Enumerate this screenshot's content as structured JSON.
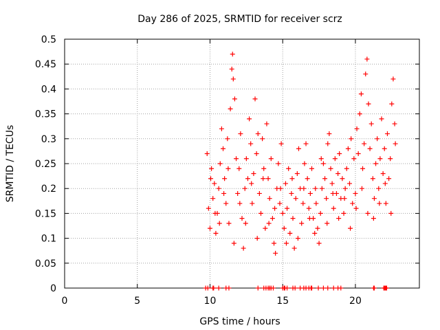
{
  "chart_data": {
    "type": "scatter",
    "title": "Day 286 of 2025, SRMTID for receiver scrz",
    "xlabel": "GPS time / hours",
    "ylabel": "SRMTID / TECUs",
    "xlim": [
      0,
      24.4
    ],
    "ylim": [
      0,
      0.5
    ],
    "xticks": [
      0,
      5,
      10,
      15,
      20
    ],
    "xtick_labels": [
      "0",
      "5",
      "10",
      "15",
      "20"
    ],
    "yticks": [
      0,
      0.05,
      0.1,
      0.15,
      0.2,
      0.25,
      0.3,
      0.35,
      0.4,
      0.45,
      0.5
    ],
    "ytick_labels": [
      "0",
      "0.05",
      "0.1",
      "0.15",
      "0.2",
      "0.25",
      "0.3",
      "0.35",
      "0.4",
      "0.45",
      "0.5"
    ],
    "grid": true,
    "marker": "+",
    "series_color": "#ff0000",
    "series": [
      {
        "name": "SRMTID",
        "points": [
          [
            9.8,
            0.27
          ],
          [
            9.9,
            0.16
          ],
          [
            10.0,
            0.12
          ],
          [
            10.1,
            0.24
          ],
          [
            10.2,
            0.18
          ],
          [
            10.3,
            0.21
          ],
          [
            10.4,
            0.11
          ],
          [
            10.5,
            0.15
          ],
          [
            10.6,
            0.2
          ],
          [
            10.7,
            0.25
          ],
          [
            10.8,
            0.32
          ],
          [
            10.9,
            0.28
          ],
          [
            11.0,
            0.22
          ],
          [
            11.1,
            0.17
          ],
          [
            11.2,
            0.3
          ],
          [
            11.3,
            0.13
          ],
          [
            11.4,
            0.36
          ],
          [
            11.5,
            0.44
          ],
          [
            11.55,
            0.47
          ],
          [
            11.6,
            0.42
          ],
          [
            11.7,
            0.38
          ],
          [
            11.8,
            0.26
          ],
          [
            11.9,
            0.19
          ],
          [
            12.0,
            0.24
          ],
          [
            12.1,
            0.31
          ],
          [
            12.2,
            0.14
          ],
          [
            12.3,
            0.08
          ],
          [
            12.4,
            0.2
          ],
          [
            12.5,
            0.26
          ],
          [
            12.6,
            0.22
          ],
          [
            12.7,
            0.34
          ],
          [
            12.8,
            0.29
          ],
          [
            12.9,
            0.17
          ],
          [
            13.0,
            0.23
          ],
          [
            13.1,
            0.38
          ],
          [
            13.2,
            0.27
          ],
          [
            13.3,
            0.31
          ],
          [
            13.4,
            0.19
          ],
          [
            13.5,
            0.15
          ],
          [
            13.6,
            0.3
          ],
          [
            13.7,
            0.24
          ],
          [
            13.8,
            0.12
          ],
          [
            13.9,
            0.33
          ],
          [
            14.0,
            0.22
          ],
          [
            14.1,
            0.18
          ],
          [
            14.2,
            0.26
          ],
          [
            14.3,
            0.14
          ],
          [
            14.4,
            0.09
          ],
          [
            14.5,
            0.07
          ],
          [
            14.6,
            0.2
          ],
          [
            14.7,
            0.25
          ],
          [
            14.8,
            0.17
          ],
          [
            14.9,
            0.29
          ],
          [
            15.0,
            0.15
          ],
          [
            15.1,
            0.12
          ],
          [
            15.2,
            0.21
          ],
          [
            15.3,
            0.16
          ],
          [
            15.4,
            0.24
          ],
          [
            15.5,
            0.11
          ],
          [
            15.6,
            0.19
          ],
          [
            15.7,
            0.14
          ],
          [
            15.8,
            0.08
          ],
          [
            15.9,
            0.18
          ],
          [
            16.0,
            0.23
          ],
          [
            16.1,
            0.28
          ],
          [
            16.2,
            0.2
          ],
          [
            16.3,
            0.13
          ],
          [
            16.4,
            0.17
          ],
          [
            16.5,
            0.25
          ],
          [
            16.6,
            0.29
          ],
          [
            16.7,
            0.22
          ],
          [
            16.8,
            0.16
          ],
          [
            16.9,
            0.19
          ],
          [
            17.0,
            0.24
          ],
          [
            17.1,
            0.14
          ],
          [
            17.2,
            0.11
          ],
          [
            17.3,
            0.17
          ],
          [
            17.4,
            0.12
          ],
          [
            17.5,
            0.09
          ],
          [
            17.6,
            0.15
          ],
          [
            17.7,
            0.2
          ],
          [
            17.8,
            0.25
          ],
          [
            17.9,
            0.22
          ],
          [
            18.0,
            0.18
          ],
          [
            18.1,
            0.29
          ],
          [
            18.2,
            0.31
          ],
          [
            18.3,
            0.24
          ],
          [
            18.4,
            0.21
          ],
          [
            18.5,
            0.16
          ],
          [
            18.6,
            0.26
          ],
          [
            18.7,
            0.19
          ],
          [
            18.8,
            0.23
          ],
          [
            18.9,
            0.27
          ],
          [
            19.0,
            0.18
          ],
          [
            19.1,
            0.22
          ],
          [
            19.2,
            0.15
          ],
          [
            19.3,
            0.2
          ],
          [
            19.4,
            0.24
          ],
          [
            19.5,
            0.28
          ],
          [
            19.6,
            0.21
          ],
          [
            19.7,
            0.3
          ],
          [
            19.8,
            0.17
          ],
          [
            19.9,
            0.26
          ],
          [
            20.0,
            0.19
          ],
          [
            20.1,
            0.32
          ],
          [
            20.2,
            0.27
          ],
          [
            20.3,
            0.35
          ],
          [
            20.4,
            0.39
          ],
          [
            20.5,
            0.24
          ],
          [
            20.6,
            0.29
          ],
          [
            20.7,
            0.43
          ],
          [
            20.8,
            0.46
          ],
          [
            20.9,
            0.37
          ],
          [
            21.0,
            0.28
          ],
          [
            21.1,
            0.33
          ],
          [
            21.2,
            0.22
          ],
          [
            21.3,
            0.18
          ],
          [
            21.4,
            0.25
          ],
          [
            21.5,
            0.3
          ],
          [
            21.6,
            0.2
          ],
          [
            21.7,
            0.26
          ],
          [
            21.8,
            0.34
          ],
          [
            21.9,
            0.23
          ],
          [
            22.0,
            0.28
          ],
          [
            22.1,
            0.17
          ],
          [
            22.2,
            0.31
          ],
          [
            22.3,
            0.22
          ],
          [
            22.4,
            0.26
          ],
          [
            22.5,
            0.37
          ],
          [
            22.6,
            0.42
          ],
          [
            22.7,
            0.33
          ],
          [
            22.75,
            0.29
          ],
          [
            10.05,
            0.22
          ],
          [
            10.35,
            0.15
          ],
          [
            10.65,
            0.13
          ],
          [
            10.95,
            0.19
          ],
          [
            11.25,
            0.24
          ],
          [
            11.65,
            0.09
          ],
          [
            12.05,
            0.17
          ],
          [
            12.45,
            0.13
          ],
          [
            12.85,
            0.21
          ],
          [
            13.25,
            0.1
          ],
          [
            13.65,
            0.22
          ],
          [
            14.05,
            0.13
          ],
          [
            14.45,
            0.16
          ],
          [
            14.85,
            0.2
          ],
          [
            15.25,
            0.09
          ],
          [
            15.65,
            0.22
          ],
          [
            16.05,
            0.1
          ],
          [
            16.45,
            0.2
          ],
          [
            16.85,
            0.14
          ],
          [
            17.25,
            0.2
          ],
          [
            17.65,
            0.26
          ],
          [
            18.05,
            0.13
          ],
          [
            18.45,
            0.19
          ],
          [
            18.85,
            0.14
          ],
          [
            19.25,
            0.18
          ],
          [
            19.65,
            0.12
          ],
          [
            20.05,
            0.16
          ],
          [
            20.45,
            0.2
          ],
          [
            20.85,
            0.15
          ],
          [
            21.25,
            0.14
          ],
          [
            21.65,
            0.17
          ],
          [
            22.05,
            0.21
          ],
          [
            22.45,
            0.15
          ]
        ]
      }
    ],
    "zero_points_x": [
      9.7,
      9.85,
      10.2,
      10.25,
      10.6,
      11.1,
      11.3,
      13.3,
      13.7,
      13.85,
      14.0,
      14.1,
      14.2,
      14.35,
      15.0,
      15.1,
      15.15,
      15.3,
      15.7,
      15.85,
      16.2,
      16.45,
      16.6,
      16.8,
      16.95,
      17.0,
      17.45,
      17.8,
      18.1,
      18.5,
      18.8,
      19.0,
      21.25,
      21.3,
      21.95,
      22.0,
      22.05,
      22.1,
      22.15
    ]
  }
}
